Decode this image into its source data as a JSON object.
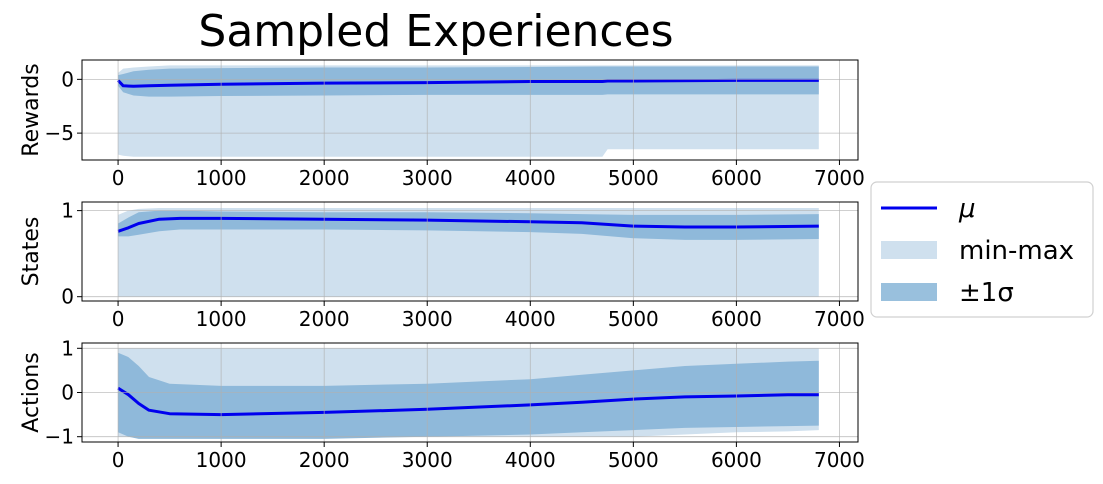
{
  "figure": {
    "title": "Sampled Experiences",
    "legend": {
      "placement": "right-center",
      "entries": [
        {
          "label": "μ",
          "kind": "line",
          "color": "#0000ee"
        },
        {
          "label": "min-max",
          "kind": "patch",
          "color": "#cfe0ee"
        },
        {
          "label": "±1σ",
          "kind": "patch",
          "color": "#99c0dd"
        }
      ]
    }
  },
  "chart_data": [
    {
      "type": "line",
      "ylabel": "Rewards",
      "xlim": [
        -350,
        7180
      ],
      "ylim": [
        -7.5,
        1.8
      ],
      "xticks": [
        0,
        1000,
        2000,
        3000,
        4000,
        5000,
        6000,
        7000
      ],
      "xtick_labels": [
        "0",
        "1000",
        "2000",
        "3000",
        "4000",
        "5000",
        "6000",
        "7000"
      ],
      "yticks": [
        -5,
        0
      ],
      "ytick_labels": [
        "−5",
        "0"
      ],
      "grid": true,
      "x": [
        0,
        50,
        150,
        300,
        500,
        1000,
        2000,
        3000,
        4000,
        4700,
        4750,
        5000,
        6000,
        6800
      ],
      "mean": [
        -0.1,
        -0.6,
        -0.65,
        -0.6,
        -0.55,
        -0.45,
        -0.35,
        -0.3,
        -0.2,
        -0.2,
        -0.15,
        -0.15,
        -0.1,
        -0.1
      ],
      "std_upper": [
        0.4,
        0.5,
        0.75,
        0.9,
        1.0,
        1.05,
        1.1,
        1.1,
        1.15,
        1.2,
        1.2,
        1.2,
        1.2,
        1.2
      ],
      "std_lower": [
        -0.6,
        -1.2,
        -1.5,
        -1.6,
        -1.6,
        -1.55,
        -1.5,
        -1.45,
        -1.45,
        -1.45,
        -1.4,
        -1.4,
        -1.4,
        -1.4
      ],
      "max": [
        0.6,
        1.0,
        1.1,
        1.2,
        1.3,
        1.3,
        1.3,
        1.3,
        1.3,
        1.3,
        1.3,
        1.3,
        1.3,
        1.3
      ],
      "min": [
        -7.0,
        -7.1,
        -7.2,
        -7.2,
        -7.2,
        -7.2,
        -7.2,
        -7.2,
        -7.2,
        -7.2,
        -6.5,
        -6.5,
        -6.5,
        -6.5
      ]
    },
    {
      "type": "line",
      "ylabel": "States",
      "xlim": [
        -350,
        7180
      ],
      "ylim": [
        -0.05,
        1.1
      ],
      "xticks": [
        0,
        1000,
        2000,
        3000,
        4000,
        5000,
        6000,
        7000
      ],
      "xtick_labels": [
        "0",
        "1000",
        "2000",
        "3000",
        "4000",
        "5000",
        "6000",
        "7000"
      ],
      "yticks": [
        0,
        1
      ],
      "ytick_labels": [
        "0",
        "1"
      ],
      "grid": true,
      "x": [
        0,
        100,
        200,
        400,
        600,
        1000,
        2000,
        3000,
        4000,
        4500,
        5000,
        5500,
        6000,
        6800
      ],
      "mean": [
        0.76,
        0.8,
        0.85,
        0.9,
        0.91,
        0.91,
        0.9,
        0.89,
        0.87,
        0.86,
        0.82,
        0.81,
        0.81,
        0.82
      ],
      "std_upper": [
        0.85,
        0.92,
        0.98,
        1.0,
        1.0,
        0.99,
        0.98,
        0.98,
        0.97,
        0.96,
        0.95,
        0.95,
        0.95,
        0.96
      ],
      "std_lower": [
        0.7,
        0.7,
        0.72,
        0.76,
        0.78,
        0.78,
        0.78,
        0.77,
        0.75,
        0.73,
        0.68,
        0.66,
        0.66,
        0.67
      ],
      "max": [
        0.95,
        1.0,
        1.02,
        1.03,
        1.03,
        1.03,
        1.03,
        1.03,
        1.03,
        1.03,
        1.03,
        1.03,
        1.03,
        1.03
      ],
      "min": [
        0.0,
        0.0,
        0.0,
        0.0,
        0.0,
        0.0,
        0.0,
        0.0,
        0.0,
        0.0,
        0.0,
        0.0,
        0.0,
        0.0
      ]
    },
    {
      "type": "line",
      "ylabel": "Actions",
      "xlim": [
        -350,
        7180
      ],
      "ylim": [
        -1.12,
        1.12
      ],
      "xticks": [
        0,
        1000,
        2000,
        3000,
        4000,
        5000,
        6000,
        7000
      ],
      "xtick_labels": [
        "0",
        "1000",
        "2000",
        "3000",
        "4000",
        "5000",
        "6000",
        "7000"
      ],
      "yticks": [
        -1,
        0,
        1
      ],
      "ytick_labels": [
        "−1",
        "0",
        "1"
      ],
      "grid": true,
      "x": [
        0,
        100,
        200,
        300,
        500,
        1000,
        2000,
        3000,
        4000,
        4500,
        5000,
        5500,
        6000,
        6500,
        6800
      ],
      "mean": [
        0.1,
        -0.05,
        -0.25,
        -0.4,
        -0.48,
        -0.5,
        -0.45,
        -0.38,
        -0.28,
        -0.22,
        -0.15,
        -0.1,
        -0.08,
        -0.05,
        -0.05
      ],
      "std_upper": [
        0.9,
        0.8,
        0.6,
        0.35,
        0.2,
        0.15,
        0.15,
        0.2,
        0.3,
        0.4,
        0.5,
        0.6,
        0.65,
        0.7,
        0.72
      ],
      "std_lower": [
        -0.9,
        -1.0,
        -1.05,
        -1.05,
        -1.05,
        -1.05,
        -1.05,
        -1.0,
        -0.95,
        -0.9,
        -0.85,
        -0.8,
        -0.78,
        -0.76,
        -0.75
      ],
      "max": [
        1.0,
        1.0,
        1.0,
        1.0,
        1.0,
        1.0,
        1.0,
        1.0,
        1.0,
        1.0,
        1.0,
        1.0,
        1.0,
        1.0,
        1.0
      ],
      "min": [
        -1.0,
        -1.0,
        -1.0,
        -1.0,
        -1.0,
        -1.0,
        -1.0,
        -1.0,
        -1.0,
        -1.0,
        -1.0,
        -0.95,
        -0.9,
        -0.88,
        -0.85
      ]
    }
  ]
}
